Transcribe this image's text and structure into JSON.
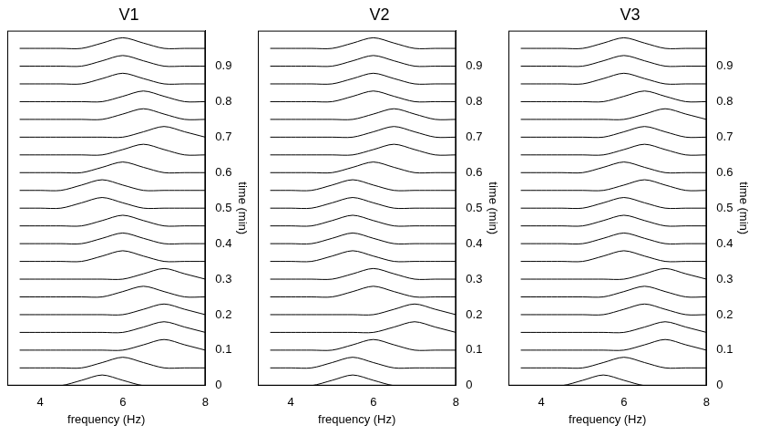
{
  "chart_data": [
    {
      "type": "line",
      "title": "V1",
      "xlabel": "frequency (Hz)",
      "ylabel": "time (min)",
      "color": "#000000",
      "grid": false,
      "x": [
        3.5,
        4,
        4.5,
        5,
        5.5,
        6,
        6.5,
        7,
        7.5,
        8
      ],
      "xlim": [
        3.2,
        8
      ],
      "xticks": [
        4,
        6,
        8
      ],
      "ylim": [
        0,
        1
      ],
      "yticks": [
        0,
        0.1,
        0.2,
        0.3,
        0.4,
        0.5,
        0.6,
        0.7,
        0.8,
        0.9
      ],
      "series": [
        {
          "values": [
            0,
            0,
            0,
            0.015,
            0.03,
            0.015,
            0,
            0,
            0,
            0
          ]
        },
        {
          "values": [
            0.05,
            0.05,
            0.05,
            0.05,
            0.065,
            0.08,
            0.065,
            0.05,
            0.05,
            0.05
          ]
        },
        {
          "values": [
            0.1,
            0.1,
            0.1,
            0.1,
            0.1,
            0.1,
            0.115,
            0.13,
            0.115,
            0.1
          ]
        },
        {
          "values": [
            0.15,
            0.15,
            0.15,
            0.15,
            0.15,
            0.15,
            0.165,
            0.18,
            0.165,
            0.15
          ]
        },
        {
          "values": [
            0.2,
            0.2,
            0.2,
            0.2,
            0.2,
            0.2,
            0.215,
            0.23,
            0.215,
            0.2
          ]
        },
        {
          "values": [
            0.25,
            0.25,
            0.25,
            0.25,
            0.25,
            0.265,
            0.28,
            0.265,
            0.25,
            0.25
          ]
        },
        {
          "values": [
            0.3,
            0.3,
            0.3,
            0.3,
            0.3,
            0.3,
            0.315,
            0.33,
            0.315,
            0.3
          ]
        },
        {
          "values": [
            0.35,
            0.35,
            0.35,
            0.35,
            0.365,
            0.38,
            0.365,
            0.35,
            0.35,
            0.35
          ]
        },
        {
          "values": [
            0.4,
            0.4,
            0.4,
            0.4,
            0.415,
            0.43,
            0.415,
            0.4,
            0.4,
            0.4
          ]
        },
        {
          "values": [
            0.45,
            0.45,
            0.45,
            0.45,
            0.465,
            0.48,
            0.465,
            0.45,
            0.45,
            0.45
          ]
        },
        {
          "values": [
            0.5,
            0.5,
            0.5,
            0.515,
            0.53,
            0.515,
            0.5,
            0.5,
            0.5,
            0.5
          ]
        },
        {
          "values": [
            0.55,
            0.55,
            0.55,
            0.565,
            0.58,
            0.565,
            0.55,
            0.55,
            0.55,
            0.55
          ]
        },
        {
          "values": [
            0.6,
            0.6,
            0.6,
            0.6,
            0.615,
            0.63,
            0.615,
            0.6,
            0.6,
            0.6
          ]
        },
        {
          "values": [
            0.65,
            0.65,
            0.65,
            0.65,
            0.65,
            0.665,
            0.68,
            0.665,
            0.65,
            0.65
          ]
        },
        {
          "values": [
            0.7,
            0.7,
            0.7,
            0.7,
            0.7,
            0.7,
            0.715,
            0.73,
            0.715,
            0.7
          ]
        },
        {
          "values": [
            0.75,
            0.75,
            0.75,
            0.75,
            0.75,
            0.765,
            0.78,
            0.765,
            0.75,
            0.75
          ]
        },
        {
          "values": [
            0.8,
            0.8,
            0.8,
            0.8,
            0.8,
            0.815,
            0.83,
            0.815,
            0.8,
            0.8
          ]
        },
        {
          "values": [
            0.85,
            0.85,
            0.85,
            0.85,
            0.865,
            0.88,
            0.865,
            0.85,
            0.85,
            0.85
          ]
        },
        {
          "values": [
            0.9,
            0.9,
            0.9,
            0.9,
            0.915,
            0.93,
            0.915,
            0.9,
            0.9,
            0.9
          ]
        },
        {
          "values": [
            0.95,
            0.95,
            0.95,
            0.95,
            0.965,
            0.98,
            0.965,
            0.95,
            0.95,
            0.95
          ]
        }
      ]
    },
    {
      "type": "line",
      "title": "V2",
      "xlabel": "frequency (Hz)",
      "ylabel": "time (min)",
      "color": "#000000",
      "grid": false,
      "x": [
        3.5,
        4,
        4.5,
        5,
        5.5,
        6,
        6.5,
        7,
        7.5,
        8
      ],
      "xlim": [
        3.2,
        8
      ],
      "xticks": [
        4,
        6,
        8
      ],
      "ylim": [
        0,
        1
      ],
      "yticks": [
        0,
        0.1,
        0.2,
        0.3,
        0.4,
        0.5,
        0.6,
        0.7,
        0.8,
        0.9
      ],
      "series": [
        {
          "values": [
            0,
            0,
            0,
            0.015,
            0.03,
            0.015,
            0,
            0,
            0,
            0
          ]
        },
        {
          "values": [
            0.05,
            0.05,
            0.05,
            0.065,
            0.08,
            0.065,
            0.05,
            0.05,
            0.05,
            0.05
          ]
        },
        {
          "values": [
            0.1,
            0.1,
            0.1,
            0.1,
            0.115,
            0.13,
            0.115,
            0.1,
            0.1,
            0.1
          ]
        },
        {
          "values": [
            0.15,
            0.15,
            0.15,
            0.15,
            0.15,
            0.15,
            0.165,
            0.18,
            0.165,
            0.15
          ]
        },
        {
          "values": [
            0.2,
            0.2,
            0.2,
            0.2,
            0.2,
            0.2,
            0.215,
            0.23,
            0.215,
            0.2
          ]
        },
        {
          "values": [
            0.25,
            0.25,
            0.25,
            0.25,
            0.265,
            0.28,
            0.265,
            0.25,
            0.25,
            0.25
          ]
        },
        {
          "values": [
            0.3,
            0.3,
            0.3,
            0.3,
            0.315,
            0.33,
            0.315,
            0.3,
            0.3,
            0.3
          ]
        },
        {
          "values": [
            0.35,
            0.35,
            0.35,
            0.365,
            0.38,
            0.365,
            0.35,
            0.35,
            0.35,
            0.35
          ]
        },
        {
          "values": [
            0.4,
            0.4,
            0.4,
            0.415,
            0.43,
            0.415,
            0.4,
            0.4,
            0.4,
            0.4
          ]
        },
        {
          "values": [
            0.45,
            0.45,
            0.45,
            0.465,
            0.48,
            0.465,
            0.45,
            0.45,
            0.45,
            0.45
          ]
        },
        {
          "values": [
            0.5,
            0.5,
            0.5,
            0.515,
            0.53,
            0.515,
            0.5,
            0.5,
            0.5,
            0.5
          ]
        },
        {
          "values": [
            0.55,
            0.55,
            0.55,
            0.565,
            0.58,
            0.565,
            0.55,
            0.55,
            0.55,
            0.55
          ]
        },
        {
          "values": [
            0.6,
            0.6,
            0.6,
            0.6,
            0.615,
            0.63,
            0.615,
            0.6,
            0.6,
            0.6
          ]
        },
        {
          "values": [
            0.65,
            0.65,
            0.65,
            0.65,
            0.65,
            0.665,
            0.68,
            0.665,
            0.65,
            0.65
          ]
        },
        {
          "values": [
            0.7,
            0.7,
            0.7,
            0.7,
            0.7,
            0.715,
            0.73,
            0.715,
            0.7,
            0.7
          ]
        },
        {
          "values": [
            0.75,
            0.75,
            0.75,
            0.75,
            0.75,
            0.765,
            0.78,
            0.765,
            0.75,
            0.75
          ]
        },
        {
          "values": [
            0.8,
            0.8,
            0.8,
            0.8,
            0.815,
            0.83,
            0.815,
            0.8,
            0.8,
            0.8
          ]
        },
        {
          "values": [
            0.85,
            0.85,
            0.85,
            0.85,
            0.865,
            0.88,
            0.865,
            0.85,
            0.85,
            0.85
          ]
        },
        {
          "values": [
            0.9,
            0.9,
            0.9,
            0.9,
            0.915,
            0.93,
            0.915,
            0.9,
            0.9,
            0.9
          ]
        },
        {
          "values": [
            0.95,
            0.95,
            0.95,
            0.95,
            0.965,
            0.98,
            0.965,
            0.95,
            0.95,
            0.95
          ]
        }
      ]
    },
    {
      "type": "line",
      "title": "V3",
      "xlabel": "frequency (Hz)",
      "ylabel": "time (min)",
      "color": "#000000",
      "grid": false,
      "x": [
        3.5,
        4,
        4.5,
        5,
        5.5,
        6,
        6.5,
        7,
        7.5,
        8
      ],
      "xlim": [
        3.2,
        8
      ],
      "xticks": [
        4,
        6,
        8
      ],
      "ylim": [
        0,
        1
      ],
      "yticks": [
        0,
        0.1,
        0.2,
        0.3,
        0.4,
        0.5,
        0.6,
        0.7,
        0.8,
        0.9
      ],
      "series": [
        {
          "values": [
            0,
            0,
            0,
            0.015,
            0.03,
            0.015,
            0,
            0,
            0,
            0
          ]
        },
        {
          "values": [
            0.05,
            0.05,
            0.05,
            0.05,
            0.065,
            0.08,
            0.065,
            0.05,
            0.05,
            0.05
          ]
        },
        {
          "values": [
            0.1,
            0.1,
            0.1,
            0.1,
            0.1,
            0.1,
            0.115,
            0.13,
            0.115,
            0.1
          ]
        },
        {
          "values": [
            0.15,
            0.15,
            0.15,
            0.15,
            0.15,
            0.15,
            0.165,
            0.18,
            0.165,
            0.15
          ]
        },
        {
          "values": [
            0.2,
            0.2,
            0.2,
            0.2,
            0.2,
            0.215,
            0.23,
            0.215,
            0.2,
            0.2
          ]
        },
        {
          "values": [
            0.25,
            0.25,
            0.25,
            0.25,
            0.25,
            0.265,
            0.28,
            0.265,
            0.25,
            0.25
          ]
        },
        {
          "values": [
            0.3,
            0.3,
            0.3,
            0.3,
            0.3,
            0.3,
            0.315,
            0.33,
            0.315,
            0.3
          ]
        },
        {
          "values": [
            0.35,
            0.35,
            0.35,
            0.35,
            0.365,
            0.38,
            0.365,
            0.35,
            0.35,
            0.35
          ]
        },
        {
          "values": [
            0.4,
            0.4,
            0.4,
            0.4,
            0.415,
            0.43,
            0.415,
            0.4,
            0.4,
            0.4
          ]
        },
        {
          "values": [
            0.45,
            0.45,
            0.45,
            0.45,
            0.465,
            0.48,
            0.465,
            0.45,
            0.45,
            0.45
          ]
        },
        {
          "values": [
            0.5,
            0.5,
            0.5,
            0.5,
            0.515,
            0.53,
            0.515,
            0.5,
            0.5,
            0.5
          ]
        },
        {
          "values": [
            0.55,
            0.55,
            0.55,
            0.55,
            0.55,
            0.565,
            0.58,
            0.565,
            0.55,
            0.55
          ]
        },
        {
          "values": [
            0.6,
            0.6,
            0.6,
            0.6,
            0.615,
            0.63,
            0.615,
            0.6,
            0.6,
            0.6
          ]
        },
        {
          "values": [
            0.65,
            0.65,
            0.65,
            0.65,
            0.65,
            0.665,
            0.68,
            0.665,
            0.65,
            0.65
          ]
        },
        {
          "values": [
            0.7,
            0.7,
            0.7,
            0.7,
            0.7,
            0.715,
            0.73,
            0.715,
            0.7,
            0.7
          ]
        },
        {
          "values": [
            0.75,
            0.75,
            0.75,
            0.75,
            0.75,
            0.75,
            0.765,
            0.78,
            0.765,
            0.75
          ]
        },
        {
          "values": [
            0.8,
            0.8,
            0.8,
            0.8,
            0.8,
            0.815,
            0.83,
            0.815,
            0.8,
            0.8
          ]
        },
        {
          "values": [
            0.85,
            0.85,
            0.85,
            0.85,
            0.865,
            0.88,
            0.865,
            0.85,
            0.85,
            0.85
          ]
        },
        {
          "values": [
            0.9,
            0.9,
            0.9,
            0.9,
            0.915,
            0.93,
            0.915,
            0.9,
            0.9,
            0.9
          ]
        },
        {
          "values": [
            0.95,
            0.95,
            0.95,
            0.95,
            0.965,
            0.98,
            0.965,
            0.95,
            0.95,
            0.95
          ]
        }
      ]
    }
  ]
}
